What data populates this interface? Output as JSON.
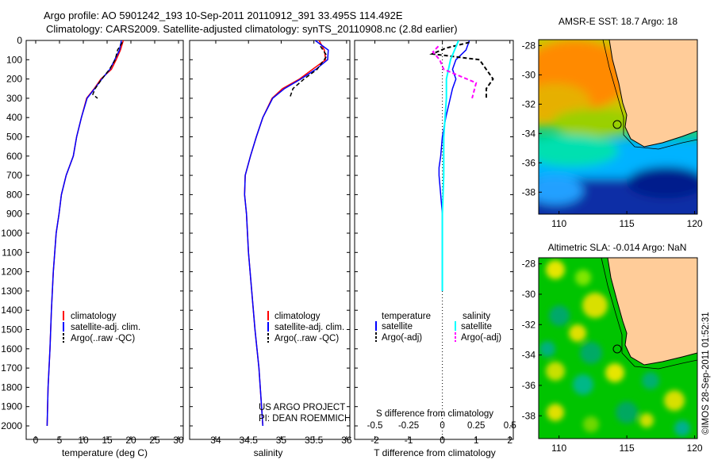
{
  "header": {
    "line1": "Argo profile: AO 5901242_193 10-Sep-2011 20110912_391 33.495S 114.492E",
    "line2": "Climatology: CARS2009. Satellite-adjusted climatology: synTS_20110908.nc (2.8d earlier)"
  },
  "footer": {
    "credit": "©IMOS 28-Sep-2011 01:52:31",
    "project_line1": "US ARGO PROJECT",
    "project_line2": "PI: DEAN ROEMMICH"
  },
  "colors": {
    "climatology": "#ff0000",
    "satellite": "#0000ff",
    "argo": "#000000",
    "salinity_satellite": "#00ffff",
    "salinity_argo": "#ff00ff",
    "land": "#ffcc99"
  },
  "chart_data": [
    {
      "type": "line",
      "panel": "temperature",
      "xlabel": "temperature (deg C)",
      "ylabel": "",
      "xlim": [
        -2,
        31
      ],
      "ylim": [
        2070,
        0
      ],
      "xticks": [
        0,
        5,
        10,
        15,
        20,
        25,
        30
      ],
      "yticks": [
        0,
        100,
        200,
        300,
        400,
        500,
        600,
        700,
        800,
        900,
        1000,
        1100,
        1200,
        1300,
        1400,
        1500,
        1600,
        1700,
        1800,
        1900,
        2000
      ],
      "legend": [
        "climatology",
        "satellite-adj. clim.",
        "Argo(..raw -QC)"
      ],
      "series": [
        {
          "name": "climatology",
          "x": [
            18.4,
            17.8,
            16.9,
            15.9,
            13.7,
            12.3,
            10.7,
            9.6,
            8.6,
            7.9,
            6.4,
            5.4,
            4.9,
            4.3,
            3.7,
            3.3,
            3.0,
            2.8,
            2.6,
            2.5,
            2.4
          ],
          "y": [
            0,
            50,
            100,
            150,
            200,
            250,
            300,
            400,
            500,
            600,
            700,
            800,
            900,
            1000,
            1200,
            1400,
            1600,
            1700,
            1800,
            1900,
            2000
          ]
        },
        {
          "name": "satellite-adj. clim.",
          "x": [
            18.0,
            17.6,
            16.6,
            15.6,
            13.9,
            12.4,
            10.8,
            9.6,
            8.6,
            7.9,
            6.4,
            5.4,
            4.9,
            4.3,
            3.7,
            3.3,
            3.0,
            2.8,
            2.6,
            2.5,
            2.4
          ],
          "y": [
            0,
            50,
            100,
            150,
            200,
            250,
            300,
            400,
            500,
            600,
            700,
            800,
            900,
            1000,
            1200,
            1400,
            1600,
            1700,
            1800,
            1900,
            2000
          ]
        },
        {
          "name": "Argo(..raw -QC)",
          "x": [
            18.2,
            17.2,
            16.7,
            15.5,
            13.9,
            12.5,
            12.0,
            13.0
          ],
          "y": [
            10,
            50,
            100,
            150,
            200,
            250,
            280,
            300
          ]
        }
      ]
    },
    {
      "type": "line",
      "panel": "salinity",
      "xlabel": "salinity",
      "ylabel": "",
      "xlim": [
        33.6,
        36.05
      ],
      "ylim": [
        2070,
        0
      ],
      "xticks": [
        34,
        34.5,
        35,
        35.5,
        36
      ],
      "legend": [
        "climatology",
        "satellite-adj. clim.",
        "Argo(..raw -QC)"
      ],
      "series": [
        {
          "name": "climatology",
          "x": [
            35.58,
            35.66,
            35.68,
            35.48,
            35.28,
            35.02,
            34.86,
            34.72,
            34.62,
            34.53,
            34.45,
            34.44,
            34.47,
            34.5,
            34.55,
            34.6,
            34.66,
            34.7,
            34.72
          ],
          "y": [
            0,
            50,
            100,
            150,
            200,
            250,
            300,
            400,
            500,
            600,
            700,
            800,
            900,
            1100,
            1300,
            1500,
            1700,
            1900,
            2000
          ]
        },
        {
          "name": "satellite-adj. clim.",
          "x": [
            35.52,
            35.72,
            35.71,
            35.53,
            35.3,
            35.05,
            34.87,
            34.72,
            34.62,
            34.53,
            34.45,
            34.44,
            34.47,
            34.5,
            34.55,
            34.6,
            34.66,
            34.7,
            34.72
          ],
          "y": [
            0,
            50,
            100,
            150,
            200,
            250,
            300,
            400,
            500,
            600,
            700,
            800,
            900,
            1100,
            1300,
            1500,
            1700,
            1900,
            2000
          ]
        },
        {
          "name": "Argo(..raw -QC)",
          "x": [
            35.6,
            35.7,
            35.55,
            35.35,
            35.18,
            35.13
          ],
          "y": [
            30,
            80,
            150,
            200,
            250,
            300
          ]
        }
      ]
    },
    {
      "type": "line",
      "panel": "difference",
      "xlabel": "T difference from climatology",
      "xlabel2": "S difference from climatology",
      "xlim": [
        -2.6,
        2.1
      ],
      "x2lim": [
        -0.65,
        0.525
      ],
      "ylim": [
        2070,
        0
      ],
      "xticks": [
        -2,
        -1,
        0,
        1,
        2
      ],
      "x2ticks": [
        -0.5,
        -0.25,
        0,
        0.25,
        0.5
      ],
      "legend_headers": [
        "temperature",
        "salinity"
      ],
      "legend": [
        "satellite",
        "Argo(-adj)",
        "satellite",
        "Argo(-adj)"
      ],
      "series": [
        {
          "name": "satellite",
          "group": "temperature",
          "x": [
            0.8,
            0.7,
            0.4,
            0.3,
            0.4,
            0.3,
            0.1,
            0.0,
            -0.05,
            -0.1,
            -0.1,
            0.0,
            0.0,
            0.0,
            0.0,
            0.0
          ],
          "y": [
            0,
            50,
            100,
            150,
            200,
            250,
            400,
            500,
            600,
            660,
            700,
            900,
            1000,
            1100,
            1200,
            1300
          ]
        },
        {
          "name": "Argo(-adj)",
          "group": "temperature",
          "x": [
            0.8,
            0.1,
            -0.3,
            1.1,
            1.5,
            1.3,
            1.3
          ],
          "y": [
            10,
            40,
            70,
            100,
            200,
            250,
            300
          ]
        },
        {
          "name": "satellite",
          "group": "salinity",
          "x": [
            0.12,
            0.06,
            0.03,
            0.03,
            0.02,
            0.01,
            0.01,
            0.0,
            0.0,
            0.0
          ],
          "y": [
            0,
            100,
            200,
            300,
            400,
            500,
            700,
            900,
            1100,
            1300
          ]
        },
        {
          "name": "Argo(-adj)",
          "group": "salinity",
          "x": [
            -0.03,
            -0.07,
            -0.02,
            0.01,
            0.25,
            0.22
          ],
          "y": [
            30,
            60,
            100,
            150,
            220,
            300
          ]
        }
      ]
    },
    {
      "type": "heatmap",
      "panel": "sst-map",
      "title": "AMSR-E SST: 18.7 Argo: 18",
      "xlim": [
        108.5,
        120.2
      ],
      "ylim": [
        -39.5,
        -27.6
      ],
      "xticks": [
        110,
        115,
        120
      ],
      "yticks": [
        -28,
        -30,
        -32,
        -34,
        -36,
        -38
      ],
      "marker": {
        "lon": 114.492,
        "lat": -33.495
      }
    },
    {
      "type": "heatmap",
      "panel": "sla-map",
      "title": "Altimetric SLA: -0.014 Argo: NaN",
      "xlim": [
        108.5,
        120.2
      ],
      "ylim": [
        -39.5,
        -27.6
      ],
      "xticks": [
        110,
        115,
        120
      ],
      "yticks": [
        -28,
        -30,
        -32,
        -34,
        -36,
        -38
      ],
      "marker": {
        "lon": 114.492,
        "lat": -33.495
      }
    }
  ]
}
